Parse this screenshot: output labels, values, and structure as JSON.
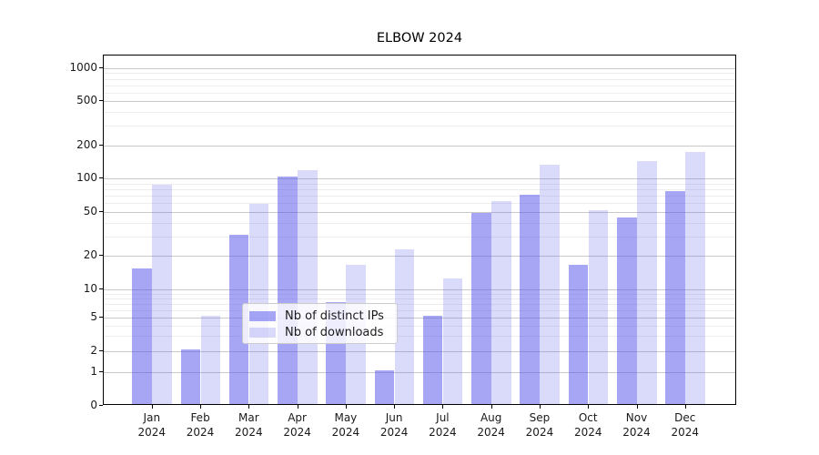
{
  "chart_data": {
    "type": "bar",
    "title": "ELBOW 2024",
    "xlabel": "",
    "ylabel": "",
    "year": "2024",
    "categories": [
      "Jan",
      "Feb",
      "Mar",
      "Apr",
      "May",
      "Jun",
      "Jul",
      "Aug",
      "Sep",
      "Oct",
      "Nov",
      "Dec"
    ],
    "series": [
      {
        "name": "Nb of distinct IPs",
        "color": "rgba(85,85,235,0.52)",
        "values": [
          15,
          2,
          30,
          100,
          7,
          1,
          5,
          47,
          69,
          16,
          43,
          74
        ]
      },
      {
        "name": "Nb of downloads",
        "color": "rgba(85,85,235,0.22)",
        "values": [
          85,
          5,
          57,
          115,
          16,
          22,
          12,
          60,
          130,
          50,
          138,
          168
        ]
      }
    ],
    "yscale": "symlog",
    "ylim": [
      0,
      1500
    ],
    "y_major_ticks": [
      0,
      1,
      2,
      5,
      10,
      20,
      50,
      100,
      200,
      500,
      1000
    ],
    "y_minor_ticks": [
      3,
      4,
      6,
      7,
      8,
      9,
      30,
      40,
      60,
      70,
      80,
      90,
      300,
      400,
      600,
      700,
      800,
      900
    ],
    "grid": "horizontal",
    "legend_position": "inside-bottom-center",
    "colors": {
      "major_grid": "#c9c9c9",
      "minor_grid": "#ededed",
      "spine": "#000000",
      "text": "#1a1a1a",
      "plot_background": "#ffffff"
    }
  }
}
